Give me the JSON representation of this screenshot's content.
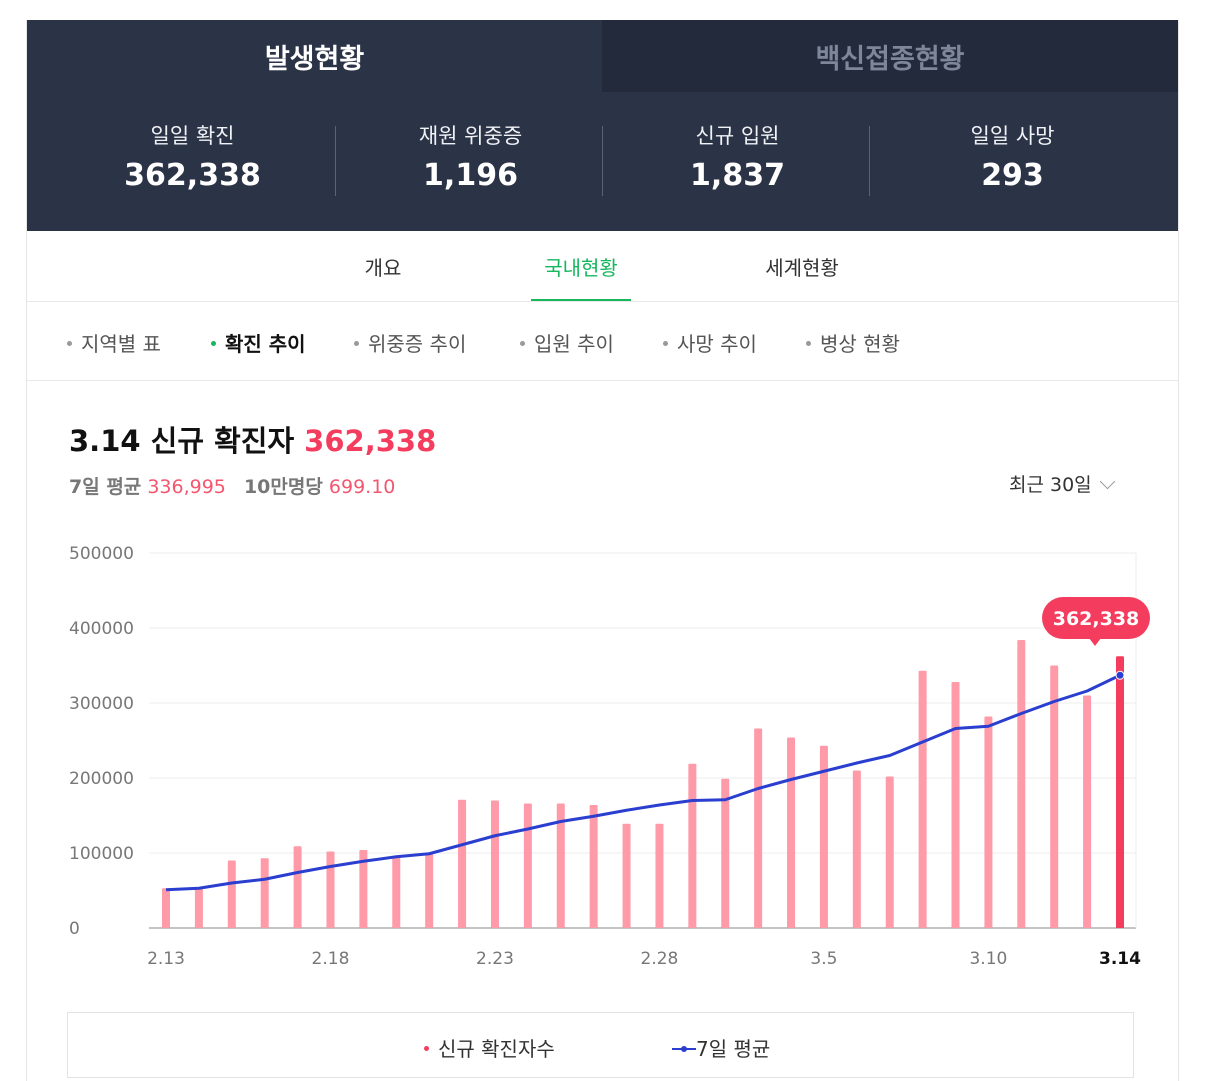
{
  "tabs": {
    "outbreak": "발생현황",
    "vaccine": "백신접종현황"
  },
  "stats": [
    {
      "label": "일일 확진",
      "value": "362,338"
    },
    {
      "label": "재원 위중증",
      "value": "1,196"
    },
    {
      "label": "신규 입원",
      "value": "1,837"
    },
    {
      "label": "일일 사망",
      "value": "293"
    }
  ],
  "subtabs": [
    "개요",
    "국내현황",
    "세계현황"
  ],
  "subtab_active": "국내현황",
  "subcats": [
    "지역별 표",
    "확진 추이",
    "위중증 추이",
    "입원 추이",
    "사망 추이",
    "병상 현황"
  ],
  "subcat_active": "확진 추이",
  "header": {
    "title": "3.14 신규 확진자",
    "value": "362,338",
    "avg_label": "7일 평균",
    "avg_value": "336,995",
    "per100k_label": "10만명당",
    "per100k_value": "699.10",
    "period": "최근 30일"
  },
  "colors": {
    "bar": "#ff9aa8",
    "bar_last": "#f43d5e",
    "line": "#2a3ecf",
    "accent": "#f43d5e",
    "active": "#17b75e"
  },
  "legend": [
    "신규 확진자수",
    "7일 평균"
  ],
  "chart_data": {
    "type": "bar",
    "x": [
      "2.13",
      "2.14",
      "2.15",
      "2.16",
      "2.17",
      "2.18",
      "2.19",
      "2.20",
      "2.21",
      "2.22",
      "2.23",
      "2.24",
      "2.25",
      "2.26",
      "2.27",
      "2.28",
      "3.1",
      "3.2",
      "3.3",
      "3.4",
      "3.5",
      "3.6",
      "3.7",
      "3.8",
      "3.9",
      "3.10",
      "3.11",
      "3.12",
      "3.13",
      "3.14"
    ],
    "tick_labels": [
      "2.13",
      "2.18",
      "2.23",
      "2.28",
      "3.5",
      "3.10",
      "3.14"
    ],
    "ylim": [
      0,
      500000
    ],
    "yticks": [
      "0",
      "100000",
      "200000",
      "300000",
      "400000",
      "500000"
    ],
    "series": [
      {
        "name": "신규 확진자수",
        "type": "bar",
        "values": [
          53000,
          54000,
          90000,
          93000,
          109000,
          102000,
          104000,
          95000,
          99000,
          171000,
          170000,
          166000,
          166000,
          164000,
          139000,
          139000,
          219000,
          199000,
          266000,
          254000,
          243000,
          210000,
          202000,
          343000,
          328000,
          282000,
          384000,
          350000,
          310000,
          362338
        ]
      },
      {
        "name": "7일 평균",
        "type": "line",
        "values": [
          51000,
          53000,
          60000,
          65000,
          74000,
          82000,
          89000,
          95000,
          99000,
          111000,
          123000,
          132000,
          142000,
          149000,
          157000,
          164000,
          170000,
          171000,
          186000,
          198000,
          209000,
          220000,
          230000,
          248000,
          266000,
          269000,
          286000,
          302000,
          316000,
          336995
        ]
      }
    ],
    "callout": "362,338",
    "grid": true,
    "legend_position": "bottom"
  }
}
